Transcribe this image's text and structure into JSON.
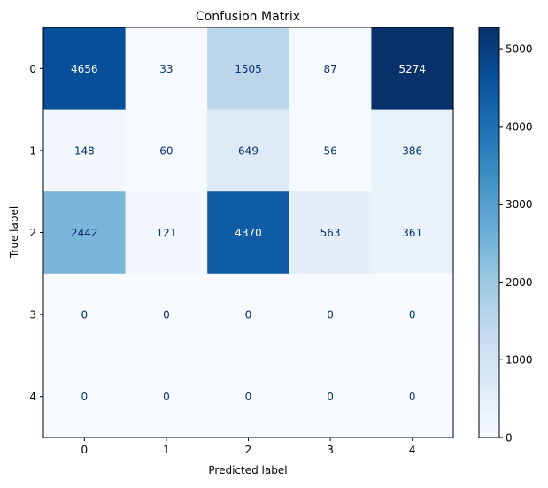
{
  "chart_data": {
    "type": "heatmap",
    "title": "Confusion Matrix",
    "xlabel": "Predicted label",
    "ylabel": "True label",
    "x_categories": [
      "0",
      "1",
      "2",
      "3",
      "4"
    ],
    "y_categories": [
      "0",
      "1",
      "2",
      "3",
      "4"
    ],
    "values": [
      [
        4656,
        33,
        1505,
        87,
        5274
      ],
      [
        148,
        60,
        649,
        56,
        386
      ],
      [
        2442,
        121,
        4370,
        563,
        361
      ],
      [
        0,
        0,
        0,
        0,
        0
      ],
      [
        0,
        0,
        0,
        0,
        0
      ]
    ],
    "colormap": "Blues",
    "color_range": [
      0,
      5274
    ],
    "colorbar_ticks": [
      "0",
      "1000",
      "2000",
      "3000",
      "4000",
      "5000"
    ],
    "colorbar_tick_values": [
      0,
      1000,
      2000,
      3000,
      4000,
      5000
    ],
    "text_colors": {
      "dark": "#08306b",
      "light": "#ffffff"
    }
  }
}
